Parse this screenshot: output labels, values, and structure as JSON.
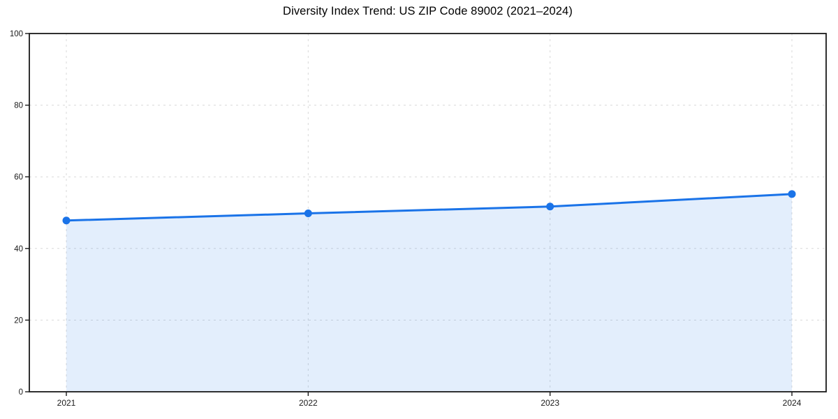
{
  "chart_data": {
    "type": "area",
    "title": "Diversity Index Trend: US ZIP Code 89002 (2021–2024)",
    "categories": [
      "2021",
      "2022",
      "2023",
      "2024"
    ],
    "series": [
      {
        "name": "Diversity Index",
        "values": [
          47.8,
          49.8,
          51.7,
          55.2
        ]
      }
    ],
    "xlabel": "",
    "ylabel": "",
    "ylim": [
      0,
      100
    ],
    "yticks": [
      0,
      20,
      40,
      60,
      80,
      100
    ],
    "grid": "dashed",
    "grid_axes": "both",
    "legend": "none",
    "marker": "circle",
    "colors": {
      "line": "#1a73e8",
      "fill": "#1a73e8",
      "fill_opacity": 0.12,
      "grid": "#d9d9d9",
      "spine": "#1a1a1a",
      "tick_text": "#1a1a1a",
      "title_text": "#000000",
      "background": "#ffffff"
    }
  }
}
